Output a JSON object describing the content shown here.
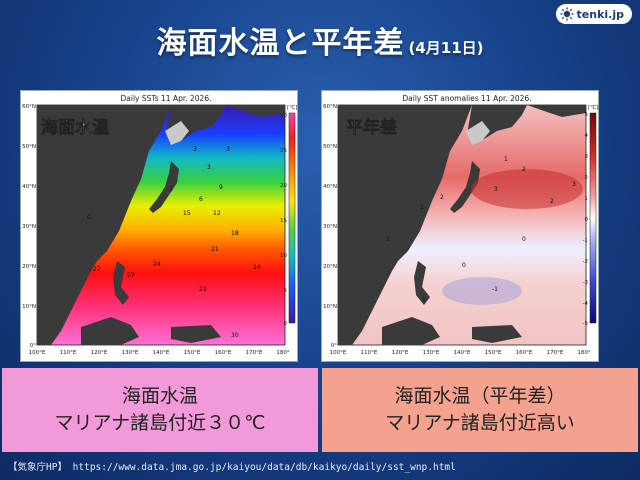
{
  "logo": {
    "text": "tenki.jp",
    "icon": "sun-logo-icon"
  },
  "title": {
    "main": "海面水温と平年差",
    "date": "(4月11日)"
  },
  "left_map": {
    "header": "Daily SSTs 11 Apr. 2026.",
    "overlay_label": "海面水温",
    "unit": "[℃]",
    "colorbar_ticks": [
      "30",
      "25",
      "20",
      "15",
      "10",
      "5",
      "0"
    ],
    "lat_labels": [
      "60°N",
      "50°N",
      "40°N",
      "30°N",
      "20°N",
      "10°N",
      "0°"
    ],
    "lon_labels": [
      "100°E",
      "110°E",
      "120°E",
      "130°E",
      "140°E",
      "150°E",
      "160°E",
      "170°E",
      "180°"
    ],
    "contour_labels": [
      "3",
      "3",
      "9",
      "6",
      "12",
      "15",
      "18",
      "21",
      "24",
      "27",
      "27",
      "24",
      "22",
      "30",
      "0",
      "1",
      "3"
    ]
  },
  "right_map": {
    "header": "Daily SST anomalies 11 Apr. 2026.",
    "overlay_label": "平年差",
    "unit": "[℃]",
    "colorbar_ticks": [
      "5",
      "4",
      "3",
      "2",
      "1",
      "0",
      "-1",
      "-2",
      "-3",
      "-4",
      "-5"
    ],
    "lat_labels": [
      "60°N",
      "50°N",
      "40°N",
      "30°N",
      "20°N",
      "10°N",
      "0°"
    ],
    "lon_labels": [
      "100°E",
      "110°E",
      "120°E",
      "130°E",
      "140°E",
      "150°E",
      "160°E",
      "170°E",
      "180°"
    ],
    "contour_labels": [
      "1",
      "2",
      "2",
      "3",
      "3",
      "1",
      "2",
      "1",
      "0",
      "0",
      "1",
      "-1"
    ]
  },
  "left_caption": {
    "line1": "海面水温",
    "line2": "マリアナ諸島付近３０℃"
  },
  "right_caption": {
    "line1": "海面水温（平年差）",
    "line2": "マリアナ諸島付近高い"
  },
  "source": "【気象庁HP】 https://www.data.jma.go.jp/kaiyou/data/db/kaikyo/daily/sst_wnp.html",
  "colors": {
    "background": "#163f86",
    "left_caption_bg": "#f29ad9",
    "right_caption_bg": "#f4a28f",
    "land": "#3a3a3a"
  }
}
